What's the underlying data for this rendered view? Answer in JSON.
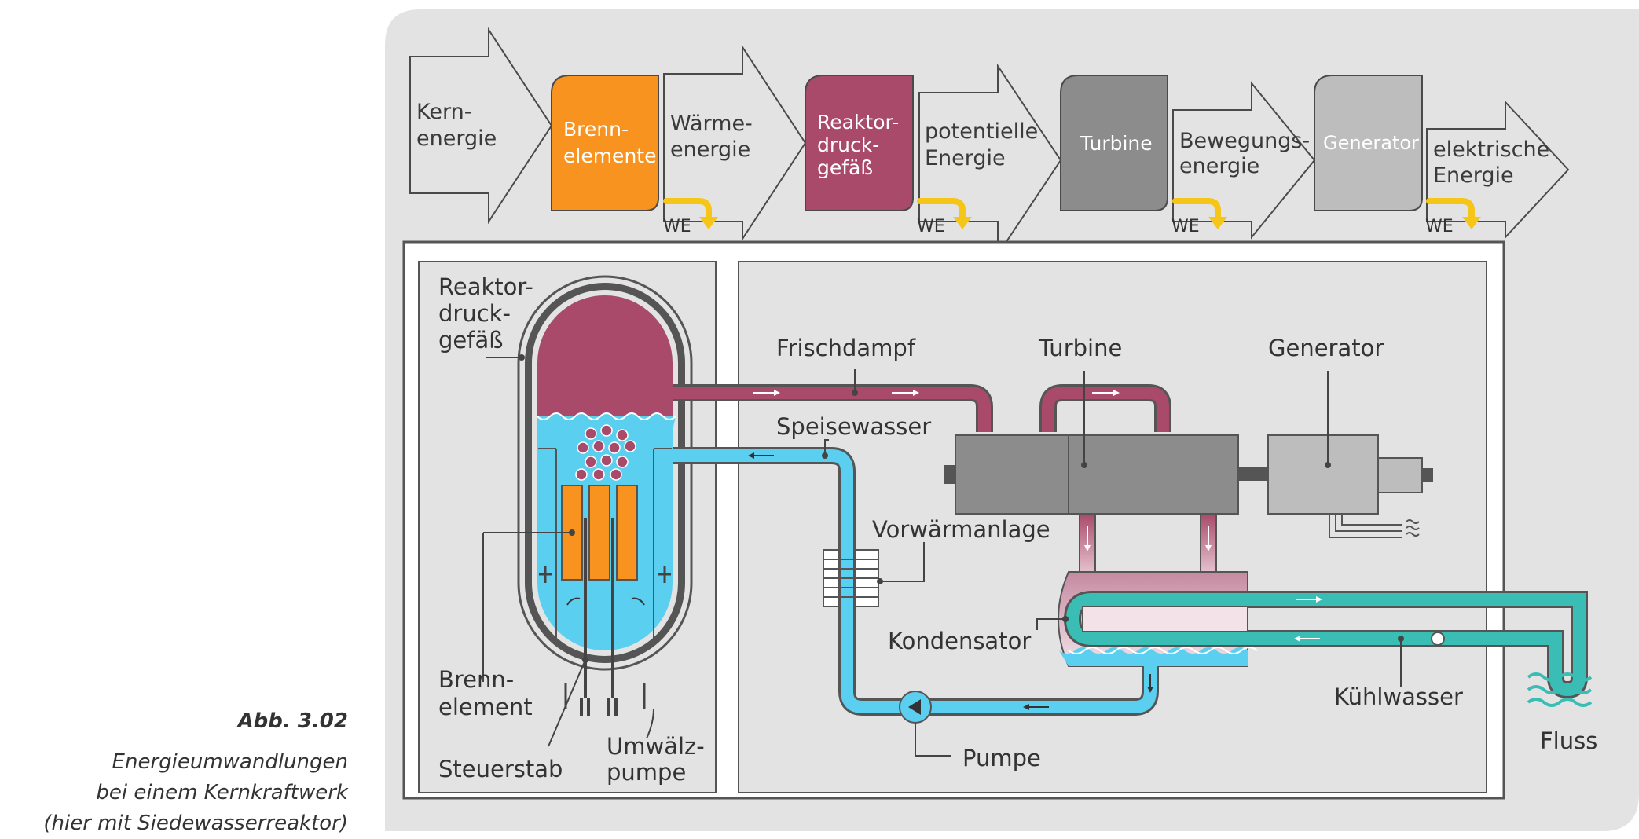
{
  "flow": {
    "arrows": [
      {
        "line1": "Kern-",
        "line2": "energie"
      },
      {
        "line1": "Wärme-",
        "line2": "energie"
      },
      {
        "line1": "potentielle",
        "line2": "Energie"
      },
      {
        "line1": "Bewegungs-",
        "line2": "energie"
      },
      {
        "line1": "elektrische",
        "line2": "Energie"
      }
    ],
    "boxes": [
      {
        "line1": "Brenn-",
        "line2": "elemente",
        "line3": "",
        "color": "#f7931e"
      },
      {
        "line1": "Reaktor-",
        "line2": "druck-",
        "line3": "gefäß",
        "color": "#a94a6a"
      },
      {
        "line1": "Turbine",
        "line2": "",
        "line3": "",
        "color": "#8c8c8c"
      },
      {
        "line1": "Generator",
        "line2": "",
        "line3": "",
        "color": "#bdbdbd"
      }
    ],
    "waste_label": "WE"
  },
  "labels": {
    "reactor_vessel": [
      "Reaktor-",
      "druck-",
      "gefäß"
    ],
    "fresh_steam": "Frischdampf",
    "turbine": "Turbine",
    "generator": "Generator",
    "feed_water": "Speisewasser",
    "preheater": "Vorwärmanlage",
    "condenser": "Kondensator",
    "fuel_element": [
      "Brenn-",
      "element"
    ],
    "control_rod": "Steuerstab",
    "circulation_pump": [
      "Umwälz-",
      "pumpe"
    ],
    "pump": "Pumpe",
    "cooling_water": "Kühlwasser",
    "river": "Fluss"
  },
  "caption": {
    "title": "Abb. 3.02",
    "lines": [
      "Energieumwandlungen",
      "bei einem Kernkraftwerk",
      "(hier mit Siedewasserreaktor)"
    ]
  },
  "colors": {
    "background_panel": "#e3e3e3",
    "steam": "#a94a6a",
    "water": "#5bcff0",
    "cooling": "#39bdb4",
    "fuel": "#f7931e",
    "waste_heat_arrow": "#f5c518"
  }
}
